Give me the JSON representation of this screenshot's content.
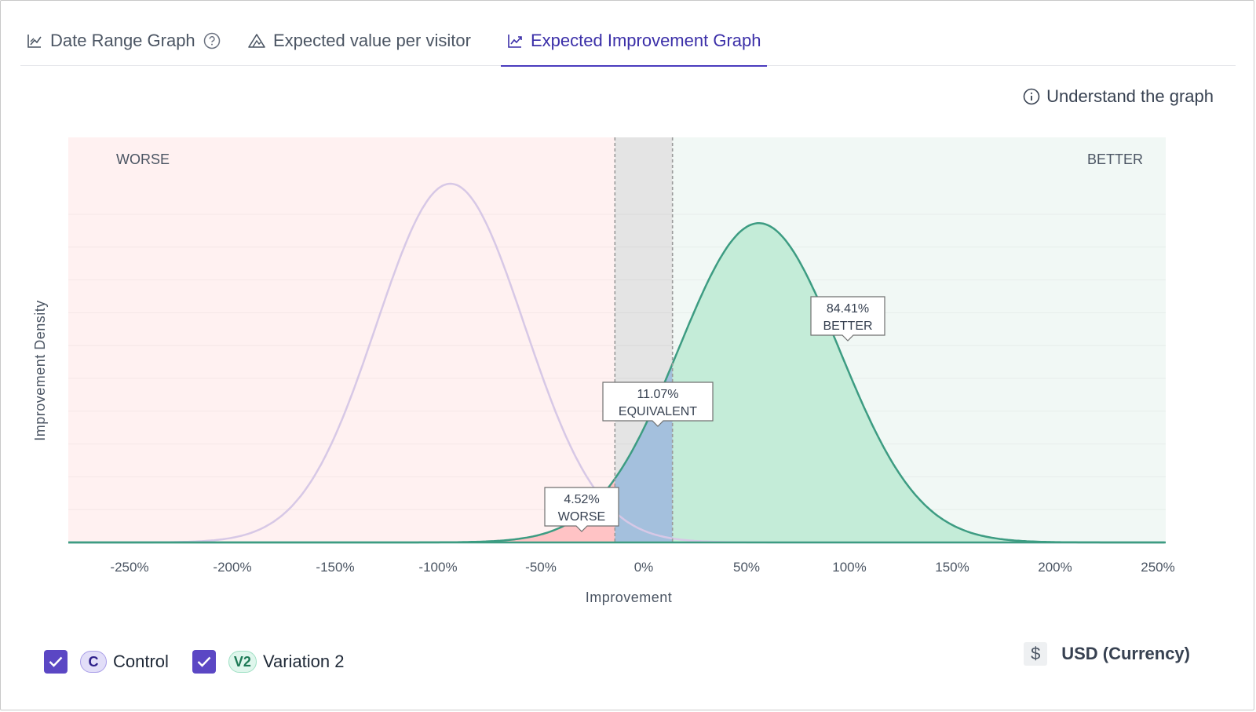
{
  "tabs": [
    {
      "label": "Date Range Graph",
      "icon": "line-chart-icon",
      "active": false
    },
    {
      "label": "Expected value per visitor",
      "icon": "triangle-chart-icon",
      "active": false
    },
    {
      "label": "Expected Improvement Graph",
      "icon": "trend-chart-icon",
      "active": true
    }
  ],
  "help_link": {
    "label": "Understand the graph",
    "icon": "info-icon"
  },
  "chart_data": {
    "type": "area",
    "xlabel": "Improvement",
    "ylabel": "Improvement Density",
    "xlim": [
      -0.285,
      0.255
    ],
    "x_ticks": [
      -250,
      -200,
      -150,
      -100,
      -50,
      0,
      50,
      100,
      150,
      200,
      250
    ],
    "x_tick_labels": [
      "-250%",
      "-200%",
      "-150%",
      "-100%",
      "-50%",
      "0%",
      "50%",
      "100%",
      "150%",
      "200%",
      "250%"
    ],
    "region_labels": {
      "worse": "WORSE",
      "better": "BETTER"
    },
    "equivalence_band_percent": [
      -14,
      14
    ],
    "grid": "horizontal",
    "series": [
      {
        "name": "Control",
        "badge": "C",
        "color": "#d7c8e6",
        "mean_percent": -94,
        "sd_percent": 36,
        "peak_density": 1.0,
        "filled": false
      },
      {
        "name": "Variation 2",
        "badge": "V2",
        "color": "#3d9c82",
        "mean_percent": 56,
        "sd_percent": 39,
        "peak_density": 0.89,
        "filled": true
      }
    ],
    "annotations": [
      {
        "value": "4.52%",
        "label": "WORSE",
        "x_percent": -35
      },
      {
        "value": "11.07%",
        "label": "EQUIVALENT",
        "x_percent": 0
      },
      {
        "value": "84.41%",
        "label": "BETTER",
        "x_percent": 92
      }
    ]
  },
  "legend": [
    {
      "name": "Control",
      "badge": "C",
      "checked": true
    },
    {
      "name": "Variation 2",
      "badge": "V2",
      "checked": true
    }
  ],
  "currency": {
    "symbol": "$",
    "label": "USD (Currency)"
  },
  "colors": {
    "accent": "#4a3cbe",
    "worse_bg": "#fff1f1",
    "better_bg": "#f1f8f5",
    "equivalent_bg": "#e4e4e4",
    "worse_fill": "#ffc3c5",
    "equivalent_fill": "#a4c0dd",
    "better_fill": "#c4ecd8"
  }
}
